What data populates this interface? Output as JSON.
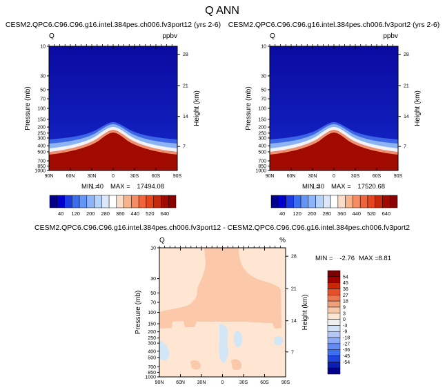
{
  "page_title": "Q ANN",
  "panels": [
    {
      "title": "CESM2.QPC6.C96.C96.g16.intel.384pes.ch006.fv3port12 (yrs 2-6)",
      "var": "Q",
      "units": "ppbv",
      "min_label": "MIN =",
      "min_value": "1.40",
      "max_label": "MAX =",
      "max_value": "17494.08"
    },
    {
      "title": "CESM2.QPC6.C96.C96.g16.intel.384pes.ch006.fv3port2 (yrs 2-6)",
      "var": "Q",
      "units": "ppbv",
      "min_label": "MIN =",
      "min_value": "1.30",
      "max_label": "MAX =",
      "max_value": "17520.68"
    }
  ],
  "diff_panel": {
    "title": "CESM2.QPC6.C96.C96.g16.intel.384pes.ch006.fv3port12 - CESM2.QPC6.C96.C96.g16.intel.384pes.ch006.fv3port2",
    "var": "Q",
    "units": "%",
    "min_label": "MIN =",
    "min_value": "-2.76",
    "max_label": "MAX =",
    "max_value": "8.81"
  },
  "colors": {
    "panel_cmap": [
      "#00008b",
      "#0000cd",
      "#1e3ce6",
      "#3c6ef0",
      "#6496f5",
      "#8cb4fa",
      "#b4d2fa",
      "#dce8fa",
      "#ffffff",
      "#fadcc8",
      "#f5b48c",
      "#f58c64",
      "#f0643c",
      "#e6461e",
      "#c8280a",
      "#a00a00",
      "#8b0000"
    ],
    "diff_cmap": [
      "#00008b",
      "#0a1eb4",
      "#1e46dc",
      "#3c6ef0",
      "#648cf5",
      "#8caaf5",
      "#b4c8f5",
      "#d2e1f5",
      "#f0f0f0",
      "#fae6d2",
      "#f5c8aa",
      "#f0a078",
      "#eb7850",
      "#e65028",
      "#c82808",
      "#a00000",
      "#7d0000"
    ],
    "diff_pos_small": "#ffe6d2",
    "diff_pos_mid": "#fcc8aa",
    "diff_neg_small": "#d2e6f5"
  },
  "chart_data": [
    {
      "type": "heatmap",
      "title": "CESM2.QPC6.C96.C96.g16.intel.384pes.ch006.fv3port12 (yrs 2-6)",
      "ylabel": "Pressure (mb)",
      "ylabel_right": "Height (km)",
      "x_ticks": [
        "90N",
        "60N",
        "30N",
        "0",
        "30S",
        "60S",
        "90S"
      ],
      "y_ticks": [
        "10",
        "30",
        "50",
        "70",
        "100",
        "150",
        "200",
        "250",
        "300",
        "400",
        "500",
        "700",
        "850",
        "1000"
      ],
      "y_right_ticks": [
        "28",
        "21",
        "14",
        "7"
      ],
      "colorbar_labels": [
        "40",
        "120",
        "200",
        "280",
        "360",
        "440",
        "520",
        "640"
      ],
      "min": 1.4,
      "max": 17494.08
    },
    {
      "type": "heatmap",
      "title": "CESM2.QPC6.C96.C96.g16.intel.384pes.ch006.fv3port2 (yrs 2-6)",
      "ylabel": "Pressure (mb)",
      "ylabel_right": "Height (km)",
      "x_ticks": [
        "90N",
        "60N",
        "30N",
        "0",
        "30S",
        "60S",
        "90S"
      ],
      "y_ticks": [
        "10",
        "30",
        "50",
        "70",
        "100",
        "150",
        "200",
        "250",
        "300",
        "400",
        "500",
        "700",
        "850",
        "1000"
      ],
      "y_right_ticks": [
        "28",
        "21",
        "14",
        "7"
      ],
      "colorbar_labels": [
        "40",
        "120",
        "200",
        "280",
        "360",
        "440",
        "520",
        "640"
      ],
      "min": 1.3,
      "max": 17520.68
    },
    {
      "type": "heatmap",
      "title": "CESM2.QPC6.C96.C96.g16.intel.384pes.ch006.fv3port12 - CESM2.QPC6.C96.C96.g16.intel.384pes.ch006.fv3port2",
      "ylabel": "Pressure (mb)",
      "ylabel_right": "Height (km)",
      "x_ticks": [
        "90N",
        "60N",
        "30N",
        "0",
        "30S",
        "60S",
        "90S"
      ],
      "y_ticks": [
        "10",
        "30",
        "50",
        "70",
        "100",
        "150",
        "200",
        "250",
        "300",
        "400",
        "500",
        "700",
        "850",
        "1000"
      ],
      "y_right_ticks": [
        "28",
        "21",
        "14",
        "7"
      ],
      "colorbar_labels": [
        "54",
        "45",
        "36",
        "27",
        "18",
        "9",
        "3",
        "0",
        "-3",
        "-9",
        "-18",
        "-27",
        "-36",
        "-45",
        "-54"
      ],
      "min": -2.76,
      "max": 8.81
    }
  ]
}
